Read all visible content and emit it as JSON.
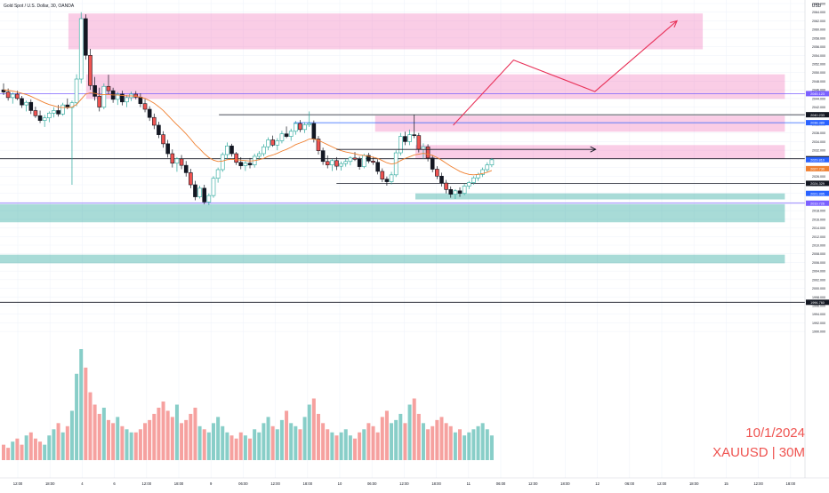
{
  "header": {
    "symbol_title": "Gold Spot / U.S. Dollar, 30, OANDA"
  },
  "currency": "USD",
  "watermark": {
    "date": "10/1/2024",
    "symbol": "XAUUSD | 30M"
  },
  "colors": {
    "bull": "#26a69a",
    "bear": "#ef5350",
    "zone_supply": "#f06fb6",
    "zone_demand": "#26a69a",
    "ma": "#f08030",
    "path": "#e8335a"
  },
  "chart_data": {
    "type": "candlestick",
    "ylim": [
      1989,
      2066
    ],
    "y_ticks": [
      "2066.000",
      "2064.000",
      "2062.000",
      "2060.000",
      "2058.000",
      "2056.000",
      "2054.000",
      "2052.000",
      "2050.000",
      "2048.000",
      "2046.000",
      "2044.000",
      "2042.000",
      "2040.000",
      "2038.000",
      "2036.000",
      "2034.000",
      "2032.000",
      "2030.000",
      "2028.000",
      "2026.000",
      "2024.000",
      "2022.000",
      "2020.000",
      "2018.000",
      "2016.000",
      "2014.000",
      "2012.000",
      "2010.000",
      "2008.000",
      "2006.000",
      "2004.000",
      "2002.000",
      "2000.000",
      "1998.000",
      "1996.000",
      "1994.000",
      "1992.000",
      "1990.000"
    ],
    "x_ticks": [
      "12:00",
      "18:00",
      "4",
      "6",
      "12:00",
      "18:00",
      "9",
      "06:00",
      "12:00",
      "18:00",
      "10",
      "06:00",
      "12:00",
      "18:00",
      "11",
      "06:00",
      "12:00",
      "18:00",
      "12",
      "06:00",
      "12:00",
      "18:00",
      "15",
      "12:00",
      "18:00"
    ],
    "price_labels": [
      {
        "value": 2045.123,
        "text": "2045.123",
        "style": "purple"
      },
      {
        "value": 2040.233,
        "text": "2040.233",
        "style": "dark"
      },
      {
        "value": 2038.389,
        "text": "2038.389",
        "style": "blue"
      },
      {
        "value": 2030.034,
        "text": "2030.034",
        "style": "dark"
      },
      {
        "value": 2029.81,
        "text": "2029.810",
        "style": "blue"
      },
      {
        "value": 2027.73,
        "text": "2027.730",
        "style": "orange"
      },
      {
        "value": 2024.329,
        "text": "2024.329",
        "style": "dark"
      },
      {
        "value": 2021.995,
        "text": "2021.995",
        "style": "blue"
      },
      {
        "value": 2019.726,
        "text": "2019.726",
        "style": "purple"
      },
      {
        "value": 1996.76,
        "text": "1996.760",
        "style": "dark"
      }
    ],
    "zones": [
      {
        "kind": "supply",
        "x_start": 0.085,
        "x_end": 0.873,
        "top": 2063.7,
        "bottom": 2055.4
      },
      {
        "kind": "supply",
        "x_start": 0.107,
        "x_end": 0.975,
        "top": 2049.6,
        "bottom": 2043.9
      },
      {
        "kind": "supply",
        "x_start": 0.466,
        "x_end": 0.975,
        "top": 2040.0,
        "bottom": 2036.3
      },
      {
        "kind": "supply",
        "x_start": 0.516,
        "x_end": 0.975,
        "top": 2033.2,
        "bottom": 2030.0
      },
      {
        "kind": "demand",
        "x_start": 0.516,
        "x_end": 0.975,
        "top": 2022.0,
        "bottom": 2020.6
      },
      {
        "kind": "demand",
        "x_start": 0.0,
        "x_end": 0.975,
        "top": 2019.5,
        "bottom": 2015.3
      },
      {
        "kind": "demand",
        "x_start": 0.0,
        "x_end": 0.975,
        "top": 2007.8,
        "bottom": 2005.8
      }
    ],
    "levels": [
      {
        "value": 2045.123,
        "style": "purple",
        "x_start": 0.0
      },
      {
        "value": 2040.233,
        "style": "dark",
        "x_start": 0.272
      },
      {
        "value": 2038.389,
        "style": "blue",
        "x_start": 0.365
      },
      {
        "value": 2030.034,
        "style": "dark",
        "x_start": 0.0
      },
      {
        "value": 2024.329,
        "style": "dark",
        "x_start": 0.418
      },
      {
        "value": 2019.726,
        "style": "purple",
        "x_start": 0.0
      },
      {
        "value": 1996.76,
        "style": "dark",
        "x_start": 0.0
      }
    ],
    "arrow": {
      "value": 2032.2,
      "x_start": 0.418,
      "x_end": 0.74
    },
    "projection": [
      [
        0.563,
        2037.8
      ],
      [
        0.638,
        2052.9
      ],
      [
        0.739,
        2045.6
      ],
      [
        0.841,
        2062.0
      ]
    ],
    "candles": [
      [
        2046.0,
        2047.5,
        2044.8,
        2045.5
      ],
      [
        2045.5,
        2046.3,
        2043.5,
        2044.2
      ],
      [
        2044.2,
        2045.4,
        2042.8,
        2045.0
      ],
      [
        2045.0,
        2045.8,
        2043.6,
        2044.0
      ],
      [
        2044.0,
        2044.6,
        2041.8,
        2042.5
      ],
      [
        2042.5,
        2043.5,
        2041.0,
        2043.1
      ],
      [
        2043.1,
        2043.8,
        2040.4,
        2041.2
      ],
      [
        2041.2,
        2042.1,
        2039.5,
        2040.0
      ],
      [
        2040.0,
        2041.2,
        2038.3,
        2038.9
      ],
      [
        2038.9,
        2040.2,
        2037.4,
        2039.5
      ],
      [
        2039.5,
        2041.0,
        2038.5,
        2040.6
      ],
      [
        2040.6,
        2042.0,
        2039.6,
        2041.2
      ],
      [
        2041.2,
        2042.5,
        2039.8,
        2040.4
      ],
      [
        2040.4,
        2043.0,
        2040.0,
        2042.5
      ],
      [
        2042.5,
        2044.0,
        2041.5,
        2041.9
      ],
      [
        2041.9,
        2043.5,
        2024.0,
        2043.0
      ],
      [
        2043.0,
        2049.6,
        2042.2,
        2048.5
      ],
      [
        2048.5,
        2064.0,
        2047.5,
        2062.5
      ],
      [
        2062.5,
        2063.5,
        2053.0,
        2054.0
      ],
      [
        2054.0,
        2055.5,
        2046.0,
        2047.0
      ],
      [
        2047.0,
        2049.0,
        2043.5,
        2044.5
      ],
      [
        2044.5,
        2046.5,
        2041.0,
        2042.0
      ],
      [
        2042.0,
        2047.5,
        2041.5,
        2046.8
      ],
      [
        2046.8,
        2049.5,
        2045.0,
        2045.8
      ],
      [
        2045.8,
        2046.5,
        2043.0,
        2043.8
      ],
      [
        2043.8,
        2045.5,
        2042.5,
        2045.0
      ],
      [
        2045.0,
        2045.8,
        2042.4,
        2043.2
      ],
      [
        2043.2,
        2044.8,
        2042.0,
        2044.2
      ],
      [
        2044.2,
        2045.6,
        2043.4,
        2045.0
      ],
      [
        2045.0,
        2045.7,
        2043.8,
        2044.3
      ],
      [
        2044.3,
        2045.2,
        2042.0,
        2042.8
      ],
      [
        2042.8,
        2043.9,
        2040.8,
        2041.5
      ],
      [
        2041.5,
        2042.2,
        2038.8,
        2039.6
      ],
      [
        2039.6,
        2040.5,
        2036.9,
        2037.8
      ],
      [
        2037.8,
        2038.6,
        2034.8,
        2035.6
      ],
      [
        2035.6,
        2036.4,
        2032.6,
        2033.5
      ],
      [
        2033.5,
        2034.4,
        2030.3,
        2031.2
      ],
      [
        2031.2,
        2032.2,
        2028.0,
        2029.0
      ],
      [
        2029.0,
        2030.4,
        2027.0,
        2030.0
      ],
      [
        2030.0,
        2030.9,
        2027.6,
        2028.5
      ],
      [
        2028.5,
        2029.5,
        2025.9,
        2026.8
      ],
      [
        2026.8,
        2027.7,
        2023.2,
        2024.0
      ],
      [
        2024.0,
        2024.9,
        2020.4,
        2021.2
      ],
      [
        2021.2,
        2023.8,
        2020.8,
        2023.2
      ],
      [
        2023.2,
        2024.0,
        2019.5,
        2020.0
      ],
      [
        2020.0,
        2022.0,
        2019.3,
        2021.5
      ],
      [
        2021.5,
        2026.0,
        2021.0,
        2025.5
      ],
      [
        2025.5,
        2028.0,
        2024.5,
        2027.5
      ],
      [
        2027.5,
        2031.5,
        2027.0,
        2031.0
      ],
      [
        2031.0,
        2033.8,
        2030.0,
        2033.0
      ],
      [
        2033.0,
        2033.5,
        2030.5,
        2031.2
      ],
      [
        2031.2,
        2031.6,
        2028.6,
        2029.2
      ],
      [
        2029.2,
        2030.4,
        2027.6,
        2028.4
      ],
      [
        2028.4,
        2029.6,
        2027.2,
        2029.0
      ],
      [
        2029.0,
        2030.2,
        2027.8,
        2028.6
      ],
      [
        2028.6,
        2031.2,
        2028.0,
        2030.6
      ],
      [
        2030.6,
        2031.8,
        2029.8,
        2031.2
      ],
      [
        2031.2,
        2033.4,
        2030.6,
        2032.8
      ],
      [
        2032.8,
        2035.0,
        2032.0,
        2034.4
      ],
      [
        2034.4,
        2035.4,
        2032.8,
        2033.2
      ],
      [
        2033.2,
        2034.8,
        2032.0,
        2034.2
      ],
      [
        2034.2,
        2036.5,
        2033.6,
        2035.8
      ],
      [
        2035.8,
        2037.5,
        2034.8,
        2035.2
      ],
      [
        2035.2,
        2037.0,
        2034.2,
        2036.4
      ],
      [
        2036.4,
        2038.8,
        2035.6,
        2038.2
      ],
      [
        2038.2,
        2039.0,
        2036.2,
        2036.8
      ],
      [
        2036.8,
        2038.5,
        2036.0,
        2037.9
      ],
      [
        2037.9,
        2041.0,
        2037.4,
        2038.2
      ],
      [
        2038.2,
        2038.9,
        2033.8,
        2034.6
      ],
      [
        2034.6,
        2035.3,
        2031.0,
        2031.9
      ],
      [
        2031.9,
        2032.6,
        2028.6,
        2029.4
      ],
      [
        2029.4,
        2030.8,
        2027.8,
        2028.6
      ],
      [
        2028.6,
        2030.0,
        2027.2,
        2029.6
      ],
      [
        2029.6,
        2030.4,
        2027.4,
        2028.3
      ],
      [
        2028.3,
        2029.4,
        2027.3,
        2028.9
      ],
      [
        2028.9,
        2030.0,
        2028.2,
        2029.4
      ],
      [
        2029.4,
        2030.6,
        2028.5,
        2030.2
      ],
      [
        2030.2,
        2031.6,
        2029.5,
        2029.9
      ],
      [
        2029.9,
        2030.5,
        2027.5,
        2028.2
      ],
      [
        2028.2,
        2031.2,
        2027.8,
        2030.8
      ],
      [
        2030.8,
        2031.4,
        2029.0,
        2029.5
      ],
      [
        2029.5,
        2030.5,
        2028.6,
        2029.2
      ],
      [
        2029.2,
        2029.9,
        2026.4,
        2027.1
      ],
      [
        2027.1,
        2027.8,
        2024.6,
        2025.3
      ],
      [
        2025.3,
        2025.9,
        2023.8,
        2024.7
      ],
      [
        2024.7,
        2027.0,
        2024.1,
        2026.3
      ],
      [
        2026.3,
        2032.0,
        2025.8,
        2031.4
      ],
      [
        2031.4,
        2036.0,
        2030.8,
        2035.2
      ],
      [
        2035.2,
        2036.3,
        2033.2,
        2034.0
      ],
      [
        2034.0,
        2036.8,
        2033.2,
        2035.6
      ],
      [
        2035.6,
        2040.2,
        2034.8,
        2035.4
      ],
      [
        2035.4,
        2036.0,
        2031.5,
        2032.2
      ],
      [
        2032.2,
        2033.6,
        2030.0,
        2032.8
      ],
      [
        2032.8,
        2033.4,
        2029.4,
        2030.2
      ],
      [
        2030.2,
        2030.9,
        2026.9,
        2027.6
      ],
      [
        2027.6,
        2028.3,
        2025.3,
        2026.0
      ],
      [
        2026.0,
        2026.8,
        2023.6,
        2024.4
      ],
      [
        2024.4,
        2025.1,
        2022.0,
        2022.9
      ],
      [
        2022.9,
        2023.6,
        2021.0,
        2021.8
      ],
      [
        2021.8,
        2023.0,
        2020.7,
        2022.6
      ],
      [
        2022.6,
        2023.4,
        2021.2,
        2022.0
      ],
      [
        2022.0,
        2024.2,
        2021.6,
        2023.7
      ],
      [
        2023.7,
        2024.9,
        2023.0,
        2024.5
      ],
      [
        2024.5,
        2026.0,
        2024.0,
        2025.6
      ],
      [
        2025.6,
        2026.8,
        2024.9,
        2026.4
      ],
      [
        2026.4,
        2028.0,
        2025.8,
        2027.5
      ],
      [
        2027.5,
        2029.2,
        2027.0,
        2028.6
      ],
      [
        2028.6,
        2030.2,
        2028.1,
        2029.8
      ]
    ],
    "ma": [
      2046.0,
      2045.9,
      2045.7,
      2045.5,
      2045.2,
      2044.9,
      2044.5,
      2044.0,
      2043.5,
      2043.0,
      2042.6,
      2042.3,
      2042.0,
      2041.9,
      2041.9,
      2042.0,
      2042.6,
      2043.8,
      2045.0,
      2045.3,
      2045.2,
      2044.9,
      2044.9,
      2044.9,
      2044.8,
      2044.8,
      2044.7,
      2044.6,
      2044.6,
      2044.5,
      2044.3,
      2044.0,
      2043.5,
      2042.9,
      2042.1,
      2041.2,
      2040.1,
      2039.0,
      2037.9,
      2036.9,
      2035.8,
      2034.6,
      2033.3,
      2032.3,
      2031.2,
      2030.3,
      2029.7,
      2029.4,
      2029.5,
      2029.8,
      2029.9,
      2029.8,
      2029.7,
      2029.6,
      2029.5,
      2029.6,
      2029.8,
      2030.1,
      2030.6,
      2030.9,
      2031.3,
      2031.8,
      2032.2,
      2032.7,
      2033.3,
      2033.7,
      2034.1,
      2034.6,
      2034.6,
      2034.3,
      2033.8,
      2033.3,
      2032.8,
      2032.3,
      2031.9,
      2031.6,
      2031.4,
      2031.2,
      2030.9,
      2030.8,
      2030.6,
      2030.4,
      2030.1,
      2029.6,
      2029.1,
      2028.8,
      2029.0,
      2029.6,
      2030.1,
      2030.5,
      2030.9,
      2031.1,
      2031.3,
      2031.1,
      2030.8,
      2030.3,
      2029.7,
      2029.0,
      2028.3,
      2027.7,
      2027.1,
      2026.7,
      2026.4,
      2026.3,
      2026.4,
      2026.6,
      2026.9,
      2027.3
    ],
    "volume": [
      5,
      4,
      6,
      7,
      5,
      8,
      9,
      7,
      6,
      5,
      8,
      10,
      12,
      9,
      11,
      16,
      28,
      36,
      30,
      22,
      18,
      15,
      17,
      13,
      12,
      14,
      11,
      10,
      9,
      9,
      10,
      12,
      13,
      15,
      17,
      19,
      16,
      14,
      18,
      12,
      13,
      15,
      17,
      11,
      10,
      9,
      12,
      14,
      11,
      9,
      8,
      7,
      9,
      8,
      7,
      10,
      9,
      12,
      14,
      11,
      10,
      13,
      16,
      12,
      11,
      10,
      14,
      18,
      20,
      15,
      12,
      10,
      9,
      8,
      9,
      10,
      8,
      7,
      9,
      10,
      12,
      11,
      9,
      14,
      16,
      12,
      13,
      15,
      12,
      18,
      20,
      15,
      12,
      10,
      11,
      13,
      14,
      12,
      11,
      9,
      10,
      8,
      9,
      10,
      11,
      12,
      10,
      8
    ]
  }
}
